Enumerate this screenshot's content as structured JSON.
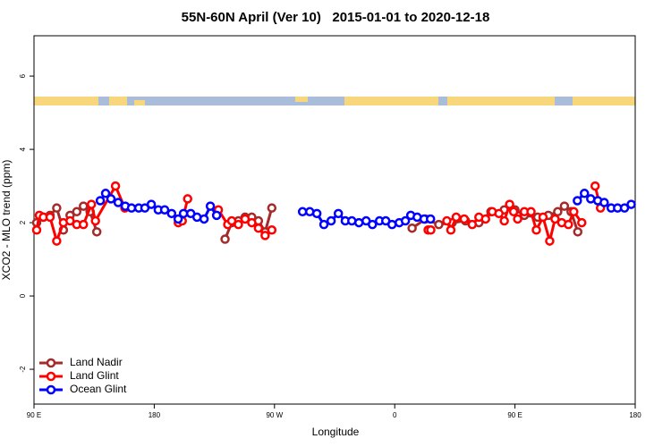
{
  "chart_data": {
    "type": "line",
    "title": "55N-60N April (Ver 10)   2015-01-01 to 2020-12-18",
    "x_label": "Longitude",
    "y_label": "XCO2 - MLO trend (ppm)",
    "xlim": [
      90,
      540
    ],
    "ylim": [
      -2.95,
      7.1
    ],
    "xticks": [
      {
        "value": 90,
        "label": "90 E"
      },
      180,
      {
        "value": 270,
        "label": "90 W"
      },
      {
        "value": 360,
        "label": "0"
      },
      {
        "value": 450,
        "label": "90 E"
      },
      {
        "value": 540,
        "label": "180"
      }
    ],
    "yticks": [
      -2,
      0,
      2,
      4,
      6
    ],
    "legend": "bottom-left",
    "series": [
      {
        "name": "Land Nadir",
        "color": "#a52a2a",
        "x": [
          92,
          97,
          102,
          107,
          112,
          117,
          122,
          127,
          132,
          137,
          null,
          233,
          238,
          243,
          248,
          253,
          258,
          263,
          268,
          null,
          373,
          383,
          393,
          403,
          413,
          423,
          432,
          442,
          450,
          457,
          467,
          475,
          482,
          487,
          492,
          497
        ],
        "values": [
          2.0,
          2.15,
          2.2,
          2.4,
          1.8,
          2.2,
          2.3,
          2.45,
          2.3,
          1.75,
          null,
          1.55,
          2.0,
          2.05,
          2.15,
          2.15,
          2.05,
          1.75,
          2.4,
          null,
          1.85,
          2.1,
          1.95,
          2.0,
          2.05,
          2.0,
          2.3,
          2.35,
          2.35,
          2.2,
          2.15,
          2.2,
          2.3,
          2.45,
          2.3,
          1.75
        ]
      },
      {
        "name": "Land Glint",
        "color": "#ff0000",
        "x": [
          92,
          94,
          97,
          102,
          107,
          112,
          117,
          122,
          127,
          133,
          136,
          151,
          158,
          null,
          198,
          201,
          205,
          null,
          228,
          235,
          238,
          243,
          248,
          253,
          258,
          263,
          268,
          null,
          385,
          387,
          null,
          399,
          402,
          406,
          412,
          418,
          423,
          428,
          433,
          438,
          442,
          446,
          449,
          452,
          457,
          462,
          466,
          471,
          476,
          480,
          485,
          490,
          494,
          500,
          null,
          510,
          514
        ],
        "values": [
          1.8,
          2.2,
          2.15,
          2.15,
          1.5,
          2.0,
          2.05,
          1.95,
          1.95,
          2.5,
          2.05,
          3.0,
          2.4,
          null,
          2.0,
          2.05,
          2.65,
          null,
          2.35,
          1.95,
          2.05,
          1.95,
          2.1,
          2.0,
          1.85,
          1.65,
          1.8,
          null,
          1.8,
          1.8,
          null,
          2.05,
          1.8,
          2.15,
          2.1,
          1.95,
          2.15,
          2.1,
          2.3,
          2.25,
          2.05,
          2.5,
          2.3,
          2.1,
          2.3,
          2.3,
          1.8,
          2.15,
          1.5,
          2.1,
          2.0,
          1.95,
          2.3,
          2.0,
          null,
          3.0,
          2.4
        ]
      },
      {
        "name": "Ocean Glint",
        "color": "#0000ff",
        "x": [
          139.6,
          143.6,
          147.6,
          153,
          158.3,
          163,
          168.4,
          173,
          177.8,
          183,
          187.8,
          193,
          197.9,
          201.9,
          207.3,
          212,
          217.3,
          222,
          226.7,
          null,
          291,
          296.4,
          301.7,
          307,
          312.4,
          317.8,
          323,
          327.9,
          333.2,
          338.6,
          343.3,
          348.6,
          353.3,
          358,
          363.4,
          368,
          372,
          376.8,
          382,
          386.8,
          null,
          496.7,
          502,
          506.7,
          512,
          516.8,
          522,
          526.8,
          532,
          537
        ],
        "values": [
          2.6,
          2.8,
          2.65,
          2.55,
          2.45,
          2.4,
          2.4,
          2.4,
          2.5,
          2.35,
          2.35,
          2.25,
          2.1,
          2.25,
          2.25,
          2.15,
          2.1,
          2.45,
          2.2,
          null,
          2.3,
          2.3,
          2.25,
          1.95,
          2.05,
          2.25,
          2.05,
          2.05,
          2.0,
          2.05,
          1.95,
          2.05,
          2.05,
          1.95,
          2.0,
          2.05,
          2.2,
          2.15,
          2.1,
          2.1,
          null,
          2.6,
          2.8,
          2.65,
          2.6,
          2.55,
          2.4,
          2.4,
          2.4,
          2.5
        ]
      }
    ]
  }
}
